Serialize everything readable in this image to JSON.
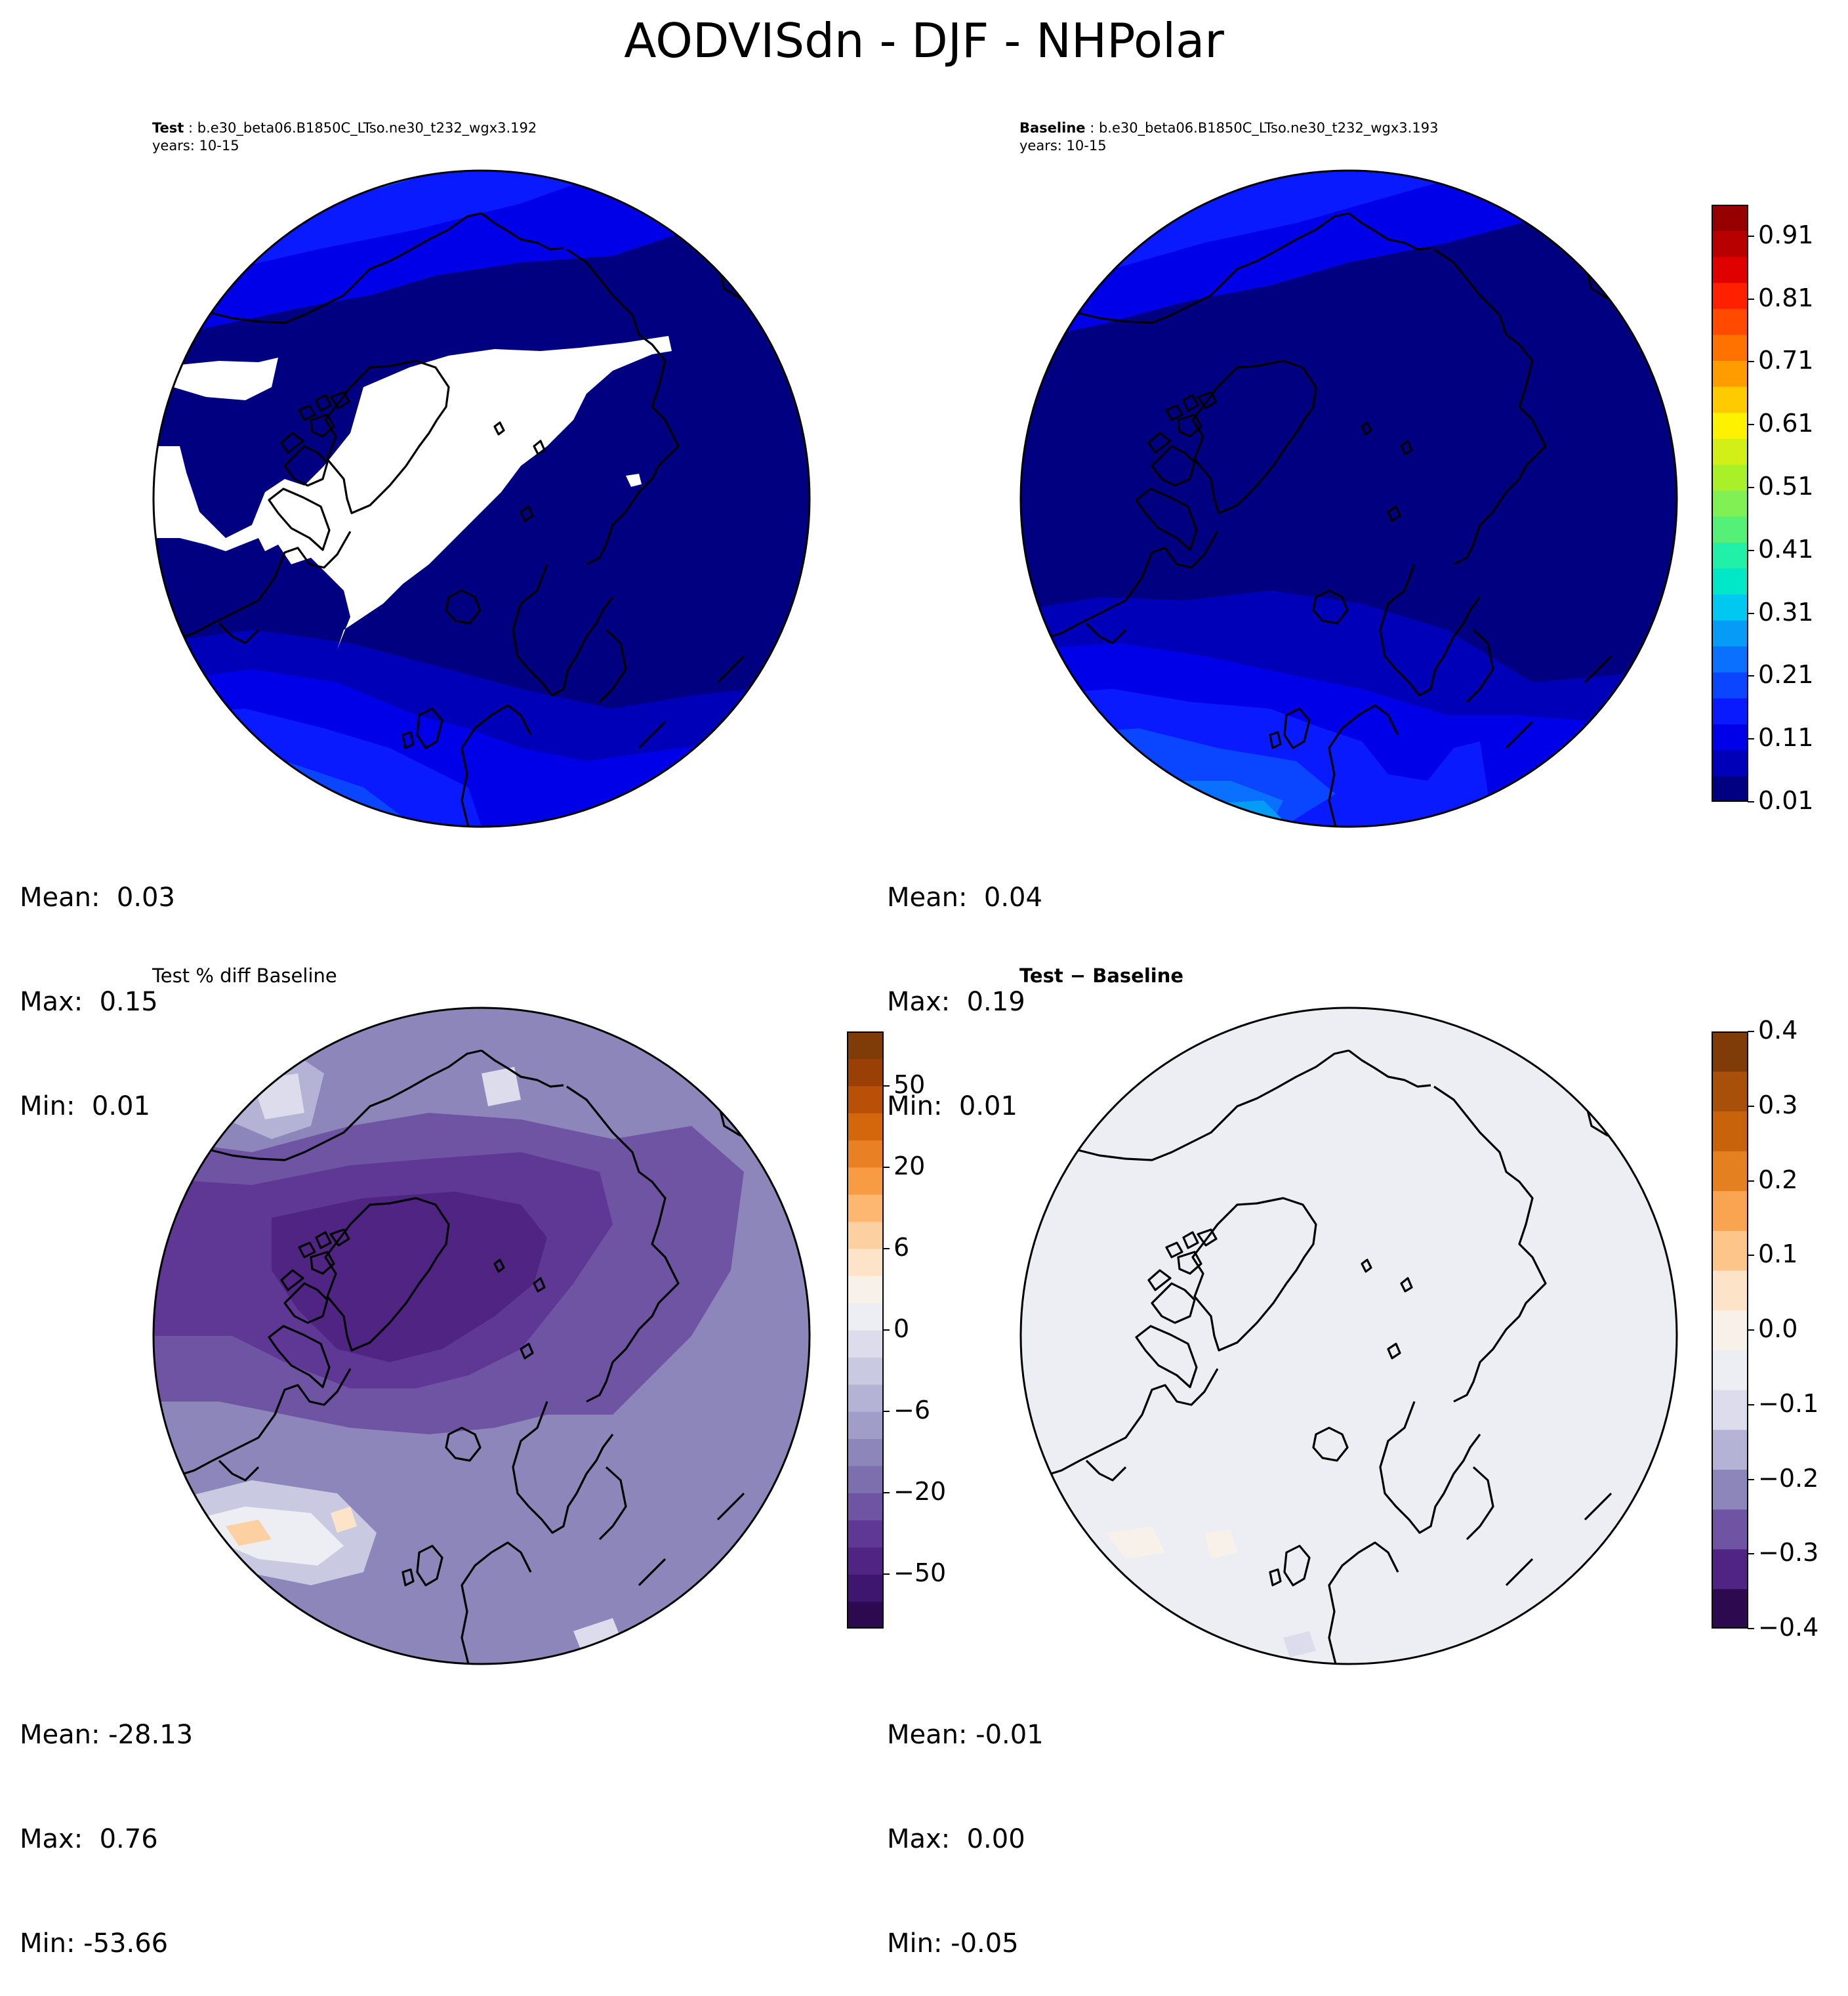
{
  "suptitle": "AODVISdn - DJF - NHPolar",
  "panels": {
    "test": {
      "label": "Test",
      "case": " : b.e30_beta06.B1850C_LTso.ne30_t232_wgx3.192",
      "years": "years: 10-15",
      "mean": "Mean:  0.03",
      "max": "Max:  0.15",
      "min": "Min:  0.01"
    },
    "baseline": {
      "label": "Baseline",
      "case": " : b.e30_beta06.B1850C_LTso.ne30_t232_wgx3.193",
      "years": "years: 10-15",
      "mean": "Mean:  0.04",
      "max": "Max:  0.19",
      "min": "Min:  0.01"
    },
    "pctdiff": {
      "title": "Test % diff Baseline",
      "mean": "Mean: -28.13",
      "max": "Max:  0.76",
      "min": "Min: -53.66"
    },
    "diff": {
      "title": "Test − Baseline",
      "mean": "Mean: -0.01",
      "max": "Max:  0.00",
      "min": "Min: -0.05"
    }
  },
  "colorbars": {
    "main": {
      "ticks": [
        "0.01",
        "0.11",
        "0.21",
        "0.31",
        "0.41",
        "0.51",
        "0.61",
        "0.71",
        "0.81",
        "0.91"
      ],
      "range": [
        0.01,
        0.96
      ],
      "colors": [
        "#000080",
        "#0000b8",
        "#0000e8",
        "#0a1aff",
        "#0a45ff",
        "#0a70ff",
        "#059cf5",
        "#00c8f0",
        "#00e8c8",
        "#20f0a8",
        "#55f078",
        "#80f055",
        "#aaf028",
        "#d2f018",
        "#fff200",
        "#ffca00",
        "#ff9c00",
        "#ff7200",
        "#ff4a00",
        "#ff2000",
        "#e00000",
        "#b80000",
        "#960000"
      ]
    },
    "pctdiff": {
      "ticks": [
        "−50",
        "−20",
        "−6",
        "0",
        "6",
        "20",
        "50"
      ],
      "colors": [
        "#2d0a4f",
        "#3e1670",
        "#4f2483",
        "#5f3895",
        "#6e54a2",
        "#7d6eae",
        "#8c86bb",
        "#a09ec8",
        "#b4b3d5",
        "#c9c9e2",
        "#dcdcec",
        "#edeef4",
        "#f7f1e9",
        "#fde4c8",
        "#fdd0a2",
        "#fdb771",
        "#f89c44",
        "#ea8024",
        "#d4660c",
        "#b85008",
        "#9a4006",
        "#7f3b08"
      ]
    },
    "diff": {
      "ticks": [
        "−0.4",
        "−0.3",
        "−0.2",
        "−0.1",
        "0.0",
        "0.1",
        "0.2",
        "0.3",
        "0.4"
      ],
      "range": [
        -0.4,
        0.4
      ],
      "colors": [
        "#2d0a4f",
        "#4f2483",
        "#6e54a2",
        "#8c86bb",
        "#b4b3d5",
        "#dcdcec",
        "#edeef4",
        "#f7f1e9",
        "#fde4c8",
        "#fdc58a",
        "#f8a450",
        "#e58021",
        "#c8630c",
        "#a8500a",
        "#7f3b08"
      ]
    }
  },
  "chart_data": [
    {
      "type": "heatmap",
      "title": "Test : b.e30_beta06.B1850C_LTso.ne30_t232_wgx3.192",
      "projection": "North Polar Stereographic",
      "mean": 0.03,
      "max": 0.15,
      "min": 0.01
    },
    {
      "type": "heatmap",
      "title": "Baseline : b.e30_beta06.B1850C_LTso.ne30_t232_wgx3.193",
      "projection": "North Polar Stereographic",
      "mean": 0.04,
      "max": 0.19,
      "min": 0.01
    },
    {
      "type": "heatmap",
      "title": "Test % diff Baseline",
      "projection": "North Polar Stereographic",
      "mean": -28.13,
      "max": 0.76,
      "min": -53.66
    },
    {
      "type": "heatmap",
      "title": "Test − Baseline",
      "projection": "North Polar Stereographic",
      "mean": -0.01,
      "max": 0.0,
      "min": -0.05
    }
  ]
}
